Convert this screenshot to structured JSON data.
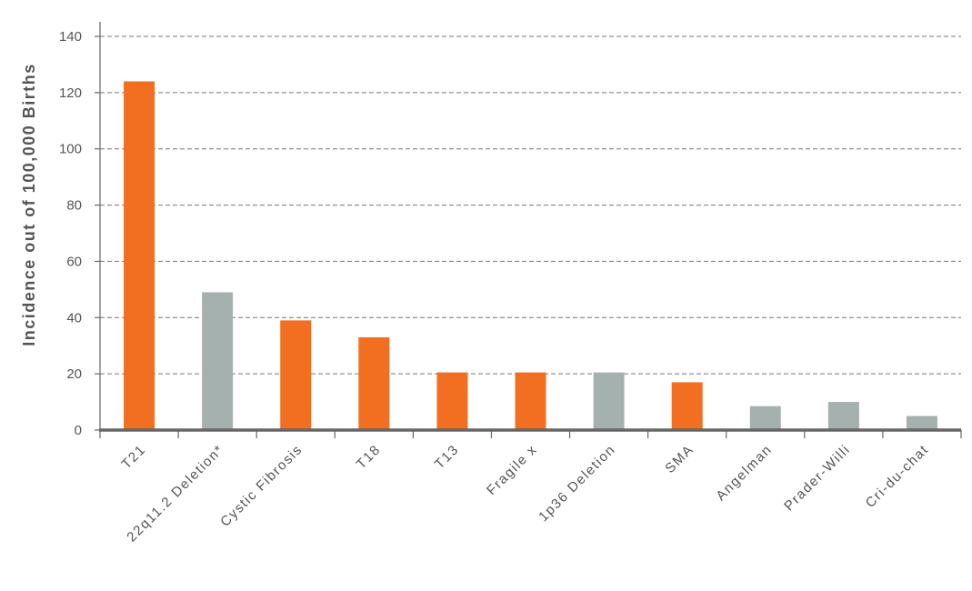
{
  "chart_data": {
    "type": "bar",
    "title": "",
    "xlabel": "",
    "ylabel": "Incidence out of 100,000 Births",
    "ylim": [
      0,
      140
    ],
    "yticks": [
      0,
      20,
      40,
      60,
      80,
      100,
      120,
      140
    ],
    "grid": true,
    "categories": [
      "T21",
      "22q11.2 Deletion*",
      "Cystic Fibrosis",
      "T18",
      "T13",
      "Fragile x",
      "1p36 Deletion",
      "SMA",
      "Angelman",
      "Prader-Willi",
      "Cri-du-chat"
    ],
    "values": [
      124,
      49,
      39,
      33,
      20.5,
      20.5,
      20.5,
      17,
      8.5,
      10,
      5
    ],
    "bar_colors": [
      "#f26f21",
      "#a5b1ae",
      "#f26f21",
      "#f26f21",
      "#f26f21",
      "#f26f21",
      "#a5b1ae",
      "#f26f21",
      "#a5b1ae",
      "#a5b1ae",
      "#a5b1ae"
    ]
  }
}
